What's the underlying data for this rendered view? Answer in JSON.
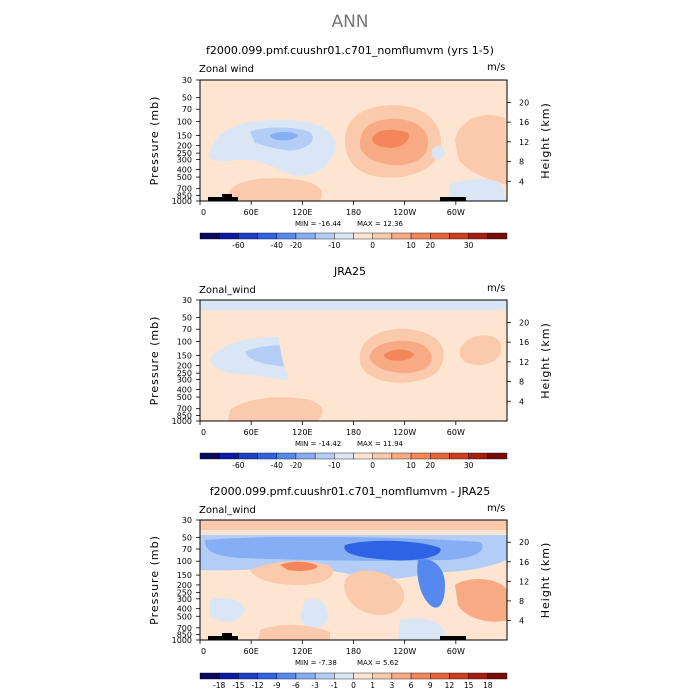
{
  "main_title": "ANN",
  "panels": [
    {
      "title": "f2000.099.pmf.cuushr01.c701_nomflumvm (yrs 1-5)",
      "variable": "Zonal wind",
      "units": "m/s",
      "min_label": "MIN =  -16.44",
      "max_label": "MAX =   12.36"
    },
    {
      "title": "JRA25",
      "variable": "Zonal_wind",
      "units": "m/s",
      "min_label": "MIN =  -14.42",
      "max_label": "MAX =   11.94"
    },
    {
      "title": "f2000.099.pmf.cuushr01.c701_nomflumvm - JRA25",
      "variable": "Zonal_wind",
      "units": "m/s",
      "min_label": "MIN =   -7.38",
      "max_label": "MAX =    5.62"
    }
  ],
  "axes": {
    "ylabel_left": "Pressure (mb)",
    "ylabel_right": "Height (km)",
    "pressure_ticks": [
      "30",
      "50",
      "70",
      "100",
      "150",
      "200",
      "250",
      "300",
      "400",
      "500",
      "700",
      "850",
      "1000"
    ],
    "height_ticks": [
      "4",
      "8",
      "12",
      "16",
      "20"
    ],
    "lon_ticks": [
      "0",
      "60E",
      "120E",
      "180",
      "120W",
      "60W"
    ]
  },
  "colorbars": {
    "absolute": {
      "labels": [
        "-60",
        "-40",
        "-20",
        "-10",
        "0",
        "10",
        "20",
        "30"
      ],
      "colors": [
        "#08085e",
        "#0b1aa2",
        "#1d3fc9",
        "#2f63e3",
        "#5689ef",
        "#86aef4",
        "#b4cdf7",
        "#dae6f6",
        "#fde5d2",
        "#fbc9ab",
        "#f7aa83",
        "#f3865b",
        "#e9623a",
        "#d03d1f",
        "#a91d0e",
        "#770b06"
      ]
    },
    "difference": {
      "labels": [
        "-18",
        "-15",
        "-12",
        "-9",
        "-6",
        "-3",
        "-1",
        "0",
        "1",
        "3",
        "6",
        "9",
        "12",
        "15",
        "18"
      ],
      "colors": [
        "#08085e",
        "#0b1aa2",
        "#1d3fc9",
        "#2f63e3",
        "#5689ef",
        "#86aef4",
        "#b4cdf7",
        "#dae6f6",
        "#fde5d2",
        "#fbc9ab",
        "#f7aa83",
        "#f3865b",
        "#e9623a",
        "#d03d1f",
        "#a91d0e",
        "#770b06"
      ]
    }
  },
  "chart_data": [
    {
      "type": "heatmap",
      "title": "f2000.099.pmf.cuushr01.c701_nomflumvm (yrs 1-5)",
      "variable": "Zonal wind",
      "units": "m/s",
      "x": "longitude 0-360",
      "y": "pressure 1000-30 mb",
      "min": -16.44,
      "max": 12.36,
      "features": [
        {
          "lon": 120,
          "pres": 150,
          "value": -16
        },
        {
          "lon": 225,
          "pres": 150,
          "value": 12
        },
        {
          "lon": 320,
          "pres": 175,
          "value": 8
        },
        {
          "lon": 60,
          "pres": 700,
          "value": 6
        }
      ]
    },
    {
      "type": "heatmap",
      "title": "JRA25",
      "variable": "Zonal_wind",
      "units": "m/s",
      "x": "longitude 0-360",
      "y": "pressure 1000-30 mb",
      "min": -14.42,
      "max": 11.94,
      "features": [
        {
          "lon": 80,
          "pres": 170,
          "value": -14
        },
        {
          "lon": 225,
          "pres": 160,
          "value": 12
        },
        {
          "lon": 315,
          "pres": 140,
          "value": 8
        },
        {
          "lon": 90,
          "pres": 600,
          "value": 4
        }
      ]
    },
    {
      "type": "heatmap",
      "title": "f2000.099.pmf.cuushr01.c701_nomflumvm - JRA25",
      "variable": "Zonal_wind",
      "units": "m/s",
      "x": "longitude 0-360",
      "y": "pressure 1000-30 mb",
      "min": -7.38,
      "max": 5.62,
      "features": [
        {
          "lon": 200,
          "pres": 65,
          "value": -7
        },
        {
          "lon": 120,
          "pres": 230,
          "value": 4
        },
        {
          "lon": 250,
          "pres": 250,
          "value": 4
        },
        {
          "lon": 330,
          "pres": 300,
          "value": 5
        },
        {
          "lon": 270,
          "pres": 260,
          "value": -6
        }
      ]
    }
  ]
}
